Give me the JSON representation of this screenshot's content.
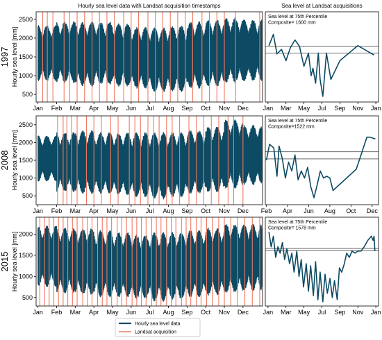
{
  "chart_data": [
    {
      "type": "line",
      "title": "Hourly sea level data with Landsat acquisition timestamps",
      "row_label": "1997",
      "ylabel": "Hourly sea level [mm]",
      "xlabel": "",
      "x_ticks": [
        "Jan",
        "Feb",
        "Mar",
        "Apr",
        "May",
        "Jun",
        "Jul",
        "Aug",
        "Sep",
        "Oct",
        "Nov",
        "Dec"
      ],
      "y_ticks": [
        500,
        1000,
        1500,
        2000,
        2500
      ],
      "ylim": [
        300,
        2700
      ],
      "xlim_months": [
        -0.1,
        12.05
      ],
      "grid": false,
      "series": [
        {
          "name": "Hourly sea level data",
          "color": "#0d4a63",
          "monthly_envelope": [
            {
              "month": "Jan",
              "min": 850,
              "max": 2350
            },
            {
              "month": "Feb",
              "min": 800,
              "max": 2450
            },
            {
              "month": "Mar",
              "min": 700,
              "max": 2450
            },
            {
              "month": "Apr",
              "min": 750,
              "max": 2450
            },
            {
              "month": "May",
              "min": 700,
              "max": 2400
            },
            {
              "month": "Jun",
              "min": 650,
              "max": 2300
            },
            {
              "month": "Jul",
              "min": 550,
              "max": 2300
            },
            {
              "month": "Aug",
              "min": 550,
              "max": 2350
            },
            {
              "month": "Sep",
              "min": 650,
              "max": 2450
            },
            {
              "month": "Oct",
              "min": 700,
              "max": 2500
            },
            {
              "month": "Nov",
              "min": 800,
              "max": 2550
            },
            {
              "month": "Dec",
              "min": 850,
              "max": 2500
            }
          ]
        },
        {
          "name": "Landsat acquisition",
          "color": "#f07860",
          "acquisitions_month": [
            0.25,
            0.5,
            0.8,
            1.4,
            1.7,
            2.1,
            2.5,
            2.9,
            3.3,
            3.7,
            4.1,
            4.6,
            5.0,
            5.4,
            5.9,
            6.3,
            6.7,
            7.1,
            7.5,
            7.9,
            8.3,
            8.8,
            9.2,
            9.6,
            10.0,
            10.6,
            11.9
          ]
        }
      ]
    },
    {
      "type": "line",
      "title": "Sea level at Landsat acquisitions",
      "row_label": "1997",
      "x_ticks": [
        "Jan",
        "Mar",
        "May",
        "Jul",
        "Sep",
        "Nov",
        "Jan"
      ],
      "xlim_months": [
        -0.3,
        12.3
      ],
      "ylim": [
        300,
        2700
      ],
      "annotation": [
        "Sea level at 75th Percentile",
        "Composite= 1600 mm"
      ],
      "hlines": [
        1600,
        1780
      ],
      "series": [
        {
          "name": "",
          "color": "#0d4a63",
          "x_month": [
            0.1,
            0.6,
            1.0,
            1.5,
            2.0,
            2.5,
            3.0,
            3.5,
            4.0,
            4.5,
            4.8,
            5.0,
            5.3,
            5.6,
            5.8,
            6.1,
            6.5,
            7.0,
            8.0,
            10.0,
            11.8
          ],
          "values": [
            1800,
            2100,
            1580,
            1700,
            1400,
            1750,
            1950,
            1780,
            1250,
            1600,
            1000,
            1200,
            800,
            1600,
            900,
            450,
            1600,
            900,
            1400,
            1800,
            1550
          ]
        }
      ]
    },
    {
      "type": "line",
      "row_label": "2008",
      "ylabel": "Hourly sea level [mm]",
      "x_ticks": [
        "Jan",
        "Feb",
        "Mar",
        "Apr",
        "May",
        "Jun",
        "Jul",
        "Aug",
        "Sep",
        "Oct",
        "Nov",
        "Dec"
      ],
      "y_ticks": [
        500,
        1000,
        1500,
        2000,
        2500
      ],
      "ylim": [
        250,
        2750
      ],
      "xlim_months": [
        -0.1,
        12.05
      ],
      "series": [
        {
          "name": "Hourly sea level data",
          "color": "#0d4a63",
          "monthly_envelope": [
            {
              "month": "Jan",
              "min": 900,
              "max": 2200
            },
            {
              "month": "Feb",
              "min": 600,
              "max": 2300
            },
            {
              "month": "Mar",
              "min": 550,
              "max": 2350
            },
            {
              "month": "Apr",
              "min": 550,
              "max": 2300
            },
            {
              "month": "May",
              "min": 500,
              "max": 2300
            },
            {
              "month": "Jun",
              "min": 450,
              "max": 2300
            },
            {
              "month": "Jul",
              "min": 400,
              "max": 2300
            },
            {
              "month": "Aug",
              "min": 450,
              "max": 2300
            },
            {
              "month": "Sep",
              "min": 550,
              "max": 2350
            },
            {
              "month": "Oct",
              "min": 600,
              "max": 2450
            },
            {
              "month": "Nov",
              "min": 700,
              "max": 2650
            },
            {
              "month": "Dec",
              "min": 800,
              "max": 2500
            }
          ]
        },
        {
          "name": "Landsat acquisition",
          "color": "#f07860",
          "acquisitions_month": [
            1.05,
            1.35,
            1.55,
            1.8,
            2.1,
            2.6,
            3.0,
            3.4,
            3.9,
            4.3,
            4.9,
            5.2,
            5.5,
            5.9,
            6.2,
            6.5,
            6.9,
            7.2,
            7.6,
            8.1,
            8.5,
            8.9,
            9.3,
            9.7,
            10.2,
            10.5,
            11.0
          ]
        }
      ]
    },
    {
      "type": "line",
      "row_label": "2008",
      "x_ticks": [
        "Feb",
        "Apr",
        "Jun",
        "Aug",
        "Oct",
        "Dec"
      ],
      "xlim_months": [
        0.9,
        11.6
      ],
      "ylim": [
        250,
        2750
      ],
      "annotation": [
        "Sea level at 75th Percentile",
        "Composite=1522 mm"
      ],
      "hlines": [
        1540,
        1740
      ],
      "series": [
        {
          "name": "",
          "color": "#0d4a63",
          "x_month": [
            1.0,
            1.3,
            1.7,
            2.0,
            2.2,
            2.5,
            2.8,
            3.1,
            3.4,
            3.7,
            4.0,
            4.3,
            4.6,
            4.9,
            5.2,
            5.5,
            5.8,
            6.1,
            6.4,
            6.7,
            7.0,
            7.3,
            9.5,
            10.5,
            10.8,
            11.3
          ],
          "values": [
            1500,
            1950,
            1850,
            1050,
            1900,
            1550,
            1000,
            1450,
            1200,
            1650,
            950,
            1200,
            1000,
            1300,
            750,
            450,
            800,
            1200,
            1000,
            1050,
            1000,
            650,
            1250,
            2150,
            2150,
            2100
          ]
        }
      ]
    },
    {
      "type": "line",
      "row_label": "2015",
      "ylabel": "Hourly sea level [mm]",
      "x_ticks": [
        "Jan",
        "Feb",
        "Mar",
        "Apr",
        "May",
        "Jun",
        "Jul",
        "Aug",
        "Sep",
        "Oct",
        "Nov",
        "Dec"
      ],
      "y_ticks": [
        500,
        1000,
        1500,
        2000
      ],
      "ylim": [
        300,
        2400
      ],
      "xlim_months": [
        -0.1,
        12.05
      ],
      "series": [
        {
          "name": "Hourly sea level data",
          "color": "#0d4a63",
          "monthly_envelope": [
            {
              "month": "Jan",
              "min": 750,
              "max": 2200
            },
            {
              "month": "Feb",
              "min": 600,
              "max": 2150
            },
            {
              "month": "Mar",
              "min": 550,
              "max": 2150
            },
            {
              "month": "Apr",
              "min": 500,
              "max": 2100
            },
            {
              "month": "May",
              "min": 500,
              "max": 2050
            },
            {
              "month": "Jun",
              "min": 450,
              "max": 2000
            },
            {
              "month": "Jul",
              "min": 400,
              "max": 2050
            },
            {
              "month": "Aug",
              "min": 450,
              "max": 2050
            },
            {
              "month": "Sep",
              "min": 500,
              "max": 2100
            },
            {
              "month": "Oct",
              "min": 550,
              "max": 2150
            },
            {
              "month": "Nov",
              "min": 600,
              "max": 2250
            },
            {
              "month": "Dec",
              "min": 650,
              "max": 2250
            }
          ]
        },
        {
          "name": "Landsat acquisition",
          "color": "#f07860",
          "acquisitions_month": [
            0.1,
            0.35,
            0.6,
            0.85,
            1.1,
            1.35,
            1.6,
            1.85,
            2.1,
            2.4,
            2.65,
            2.9,
            3.2,
            3.45,
            3.7,
            3.95,
            4.25,
            4.5,
            4.75,
            5.05,
            5.3,
            5.55,
            5.8,
            6.1,
            6.35,
            6.6,
            6.9,
            7.15,
            7.4,
            7.7,
            7.95,
            8.2,
            8.5,
            8.75,
            9.05,
            9.35,
            9.7,
            10.0,
            10.35,
            10.7,
            11.1,
            11.5,
            11.9
          ]
        }
      ]
    },
    {
      "type": "line",
      "row_label": "2015",
      "x_ticks": [
        "Jan",
        "Mar",
        "May",
        "Jul",
        "Sep",
        "Nov",
        "Jan"
      ],
      "xlim_months": [
        -0.3,
        12.3
      ],
      "ylim": [
        300,
        2400
      ],
      "annotation": [
        "Sea level at 75th Percentile",
        "Composite= 1578 mm"
      ],
      "hlines": [
        1610,
        1660
      ],
      "series": [
        {
          "name": "",
          "color": "#0d4a63",
          "x_month": [
            0.1,
            0.35,
            0.6,
            0.85,
            1.1,
            1.35,
            1.6,
            1.85,
            2.1,
            2.4,
            2.65,
            2.9,
            3.2,
            3.45,
            3.7,
            3.95,
            4.25,
            4.5,
            4.75,
            5.05,
            5.3,
            5.55,
            5.8,
            6.1,
            6.35,
            6.6,
            6.9,
            7.15,
            7.4,
            7.7,
            7.95,
            8.2,
            8.5,
            8.75,
            9.05,
            9.35,
            9.7,
            10.0,
            10.35,
            10.7,
            11.1,
            11.5,
            11.7,
            11.8,
            11.9
          ],
          "values": [
            2050,
            1700,
            1950,
            1450,
            1700,
            1550,
            1800,
            1400,
            1650,
            1300,
            1550,
            1100,
            1600,
            1000,
            1400,
            750,
            1300,
            650,
            1250,
            550,
            1350,
            450,
            1100,
            400,
            1050,
            600,
            950,
            500,
            900,
            450,
            1200,
            1100,
            1300,
            1550,
            1450,
            1600,
            1550,
            1600,
            1600,
            1700,
            1850,
            1950,
            1850,
            1950,
            1600
          ]
        }
      ]
    }
  ],
  "legend": {
    "entries": [
      {
        "label": "Hourly sea level data",
        "color": "#0d4a63"
      },
      {
        "label": "Landsat acquisition",
        "color": "#f07860"
      }
    ]
  }
}
